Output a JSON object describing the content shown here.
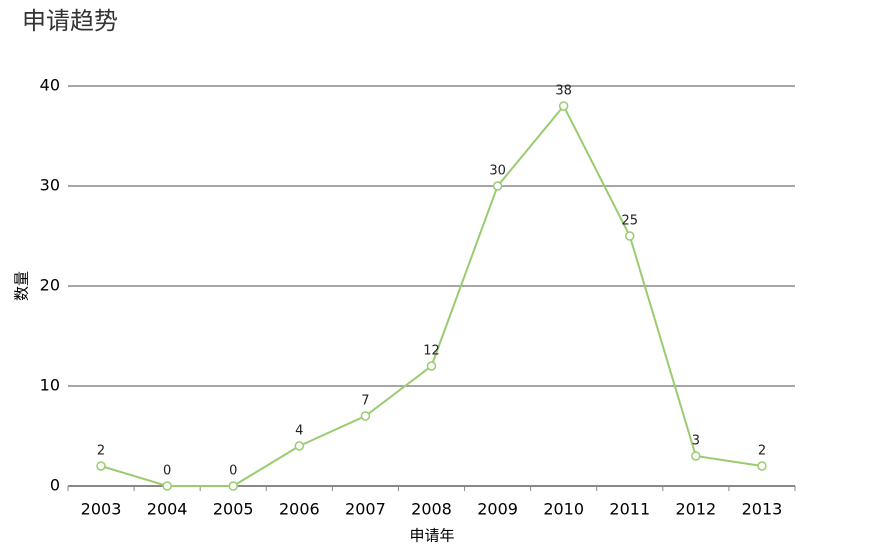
{
  "chart_data": {
    "type": "line",
    "title": "申请趋势",
    "x_label": "申请年",
    "y_label": "数量",
    "categories": [
      "2003",
      "2004",
      "2005",
      "2006",
      "2007",
      "2008",
      "2009",
      "2010",
      "2011",
      "2012",
      "2013"
    ],
    "values": [
      2,
      0,
      0,
      4,
      7,
      12,
      30,
      38,
      25,
      3,
      2
    ],
    "color": "#99cc6f",
    "ylim": [
      0,
      40
    ],
    "yticks": [
      0,
      10,
      20,
      30,
      40
    ],
    "grid": true
  }
}
